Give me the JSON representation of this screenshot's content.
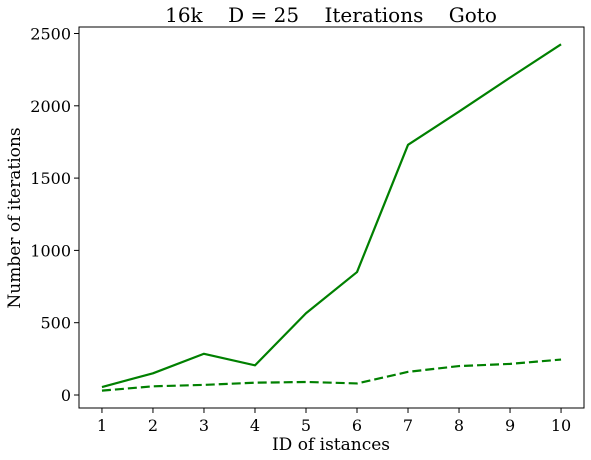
{
  "chart_data": {
    "type": "line",
    "title": "16k    D = 25    Iterations    Goto",
    "xlabel": "ID of istances",
    "ylabel": "Number of iterations",
    "x": [
      1,
      2,
      3,
      4,
      5,
      6,
      7,
      8,
      9,
      10
    ],
    "xticks": [
      1,
      2,
      3,
      4,
      5,
      6,
      7,
      8,
      9,
      10
    ],
    "yticks": [
      0,
      500,
      1000,
      1500,
      2000,
      2500
    ],
    "xlim": [
      0.55,
      10.45
    ],
    "ylim": [
      -90,
      2545
    ],
    "grid": false,
    "series": [
      {
        "values": [
          55,
          150,
          285,
          205,
          565,
          850,
          1730,
          1960,
          2195,
          2425
        ],
        "color": "#008000",
        "style": "solid"
      },
      {
        "values": [
          30,
          60,
          70,
          85,
          90,
          80,
          160,
          200,
          215,
          245
        ],
        "color": "#008000",
        "style": "dashed"
      }
    ]
  }
}
